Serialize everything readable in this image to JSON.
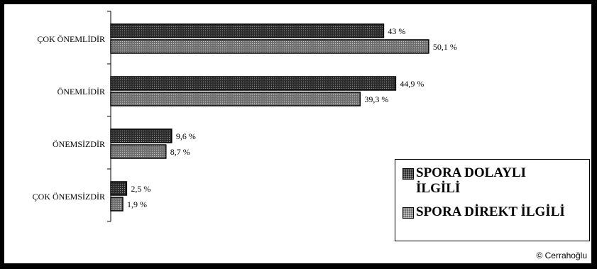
{
  "chart_data": {
    "type": "bar",
    "orientation": "horizontal",
    "categories": [
      "ÇOK ÖNEMLİDİR",
      "ÖNEMLİDİR",
      "ÖNEMSİZDİR",
      "ÇOK ÖNEMSİZDİR"
    ],
    "series": [
      {
        "name": "SPORA DOLAYLI İLGİLİ",
        "values": [
          43,
          44.9,
          9.6,
          2.5
        ],
        "labels": [
          "43 %",
          "44,9 %",
          "9,6 %",
          "2,5 %"
        ],
        "color": "#2b2b2b"
      },
      {
        "name": "SPORA DİREKT İLGİLİ",
        "values": [
          50.1,
          39.3,
          8.7,
          1.9
        ],
        "labels": [
          "50,1 %",
          "39,3 %",
          "8,7 %",
          "1,9 %"
        ],
        "color": "#6f6f6f"
      }
    ],
    "xlim": [
      0,
      60
    ],
    "grid": false,
    "legend_position": "bottom-right",
    "title": "",
    "xlabel": "",
    "ylabel": ""
  },
  "legend": {
    "items": [
      {
        "label_lines": [
          "SPORA DOLAYLI",
          "İLGİLİ"
        ]
      },
      {
        "label_lines": [
          "SPORA DİREKT İLGİLİ"
        ]
      }
    ]
  },
  "credit": "© Cerrahoğlu"
}
